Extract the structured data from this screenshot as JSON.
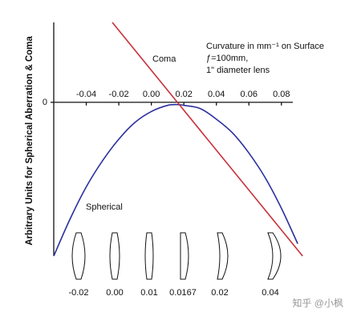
{
  "chart_data": {
    "type": "line",
    "y_label": "Arbitrary Units for Spherical Aberration & Coma",
    "note_lines": [
      "Curvature in mm⁻¹ on Surface",
      "ƒ=100mm,",
      "1\" diameter lens"
    ],
    "xlim": [
      -0.06,
      0.087
    ],
    "ylim": [
      -1.0,
      0.52
    ],
    "xticks": [
      -0.04,
      -0.02,
      {
        "value": 0,
        "label": "0.00"
      },
      0.02,
      0.04,
      0.06,
      0.08
    ],
    "yticks": [
      0
    ],
    "series": [
      {
        "name": "Spherical",
        "color": "#2b2f9e",
        "x": [
          -0.06,
          -0.05,
          -0.04,
          -0.03,
          -0.02,
          -0.01,
          0.0,
          0.01,
          0.0167,
          0.02,
          0.03,
          0.04,
          0.05,
          0.06,
          0.07,
          0.08,
          0.09
        ],
        "values": [
          -1.0,
          -0.76,
          -0.55,
          -0.38,
          -0.24,
          -0.13,
          -0.06,
          -0.02,
          -0.015,
          -0.02,
          -0.04,
          -0.11,
          -0.2,
          -0.33,
          -0.49,
          -0.69,
          -0.92
        ]
      },
      {
        "name": "Coma",
        "color": "#c8303a",
        "x": [
          -0.024,
          0.093
        ],
        "values": [
          0.52,
          -1.0
        ]
      }
    ],
    "lens_labels": [
      "-0.02",
      "0.00",
      "0.01",
      "0.0167",
      "0.02",
      "0.04"
    ],
    "watermark": "知乎 @小枫"
  }
}
